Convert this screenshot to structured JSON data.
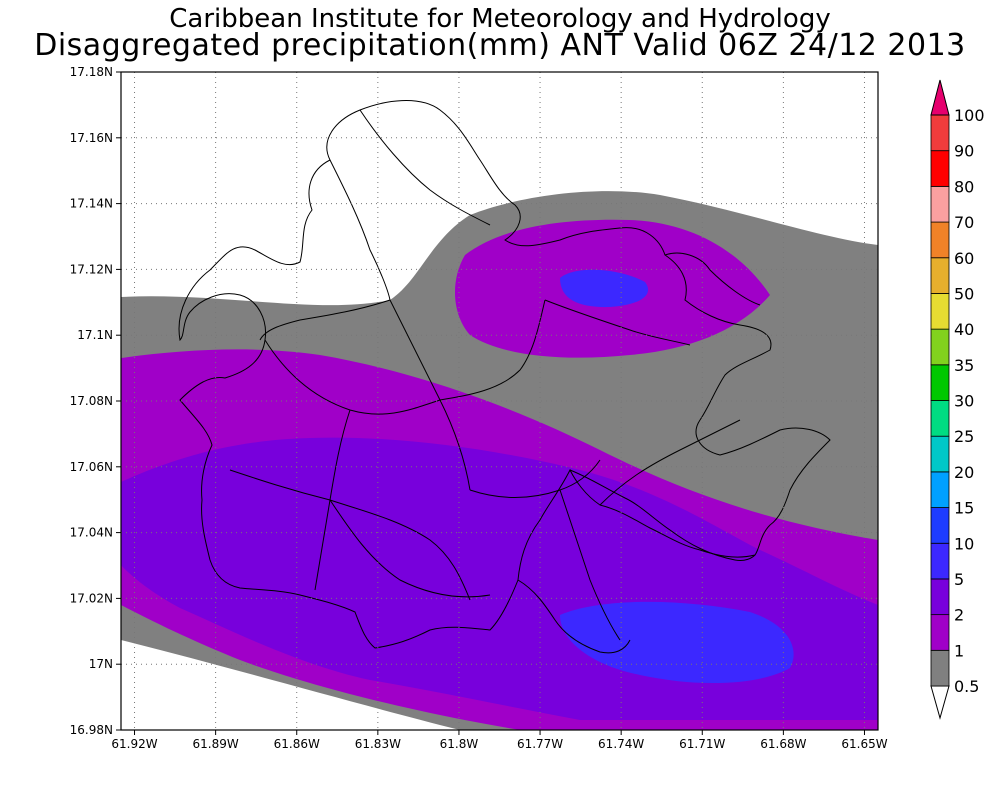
{
  "title": "Caribbean Institute for Meteorology and Hydrology",
  "subtitle": "Disaggregated precipitation(mm) ANT Valid 06Z 24/12 2013",
  "axes": {
    "x_ticks": [
      "61.92W",
      "61.89W",
      "61.86W",
      "61.83W",
      "61.8W",
      "61.77W",
      "61.74W",
      "61.71W",
      "61.68W",
      "61.65W"
    ],
    "y_ticks": [
      "17.18N",
      "17.16N",
      "17.14N",
      "17.12N",
      "17.1N",
      "17.08N",
      "17.06N",
      "17.04N",
      "17.02N",
      "17N",
      "16.98N"
    ],
    "lon_range": [
      -61.925,
      -61.645
    ],
    "lat_range": [
      16.98,
      17.18
    ],
    "grid": true
  },
  "legend": {
    "placement": "right",
    "levels": [
      {
        "label": "0.5",
        "color": "#ffffff"
      },
      {
        "label": "1",
        "color": "#808080"
      },
      {
        "label": "2",
        "color": "#a000c8"
      },
      {
        "label": "5",
        "color": "#7800dc"
      },
      {
        "label": "10",
        "color": "#3c28ff"
      },
      {
        "label": "15",
        "color": "#1e3cff"
      },
      {
        "label": "20",
        "color": "#00a0ff"
      },
      {
        "label": "25",
        "color": "#00c8c8"
      },
      {
        "label": "30",
        "color": "#00dc82"
      },
      {
        "label": "35",
        "color": "#00c800"
      },
      {
        "label": "40",
        "color": "#82d21e"
      },
      {
        "label": "50",
        "color": "#e6dc32"
      },
      {
        "label": "60",
        "color": "#e6af2d"
      },
      {
        "label": "70",
        "color": "#f08228"
      },
      {
        "label": "80",
        "color": "#faa0a0"
      },
      {
        "label": "90",
        "color": "#ff0000"
      },
      {
        "label": "100",
        "color": "#f03c3c"
      }
    ],
    "over_color": "#e6006e",
    "under_color": "#ffffff"
  },
  "map": {
    "region": "ANT",
    "fill_colors": {
      "gray": "#808080",
      "purple": "#a000c8",
      "violet": "#7800dc",
      "blue": "#3c28ff"
    }
  }
}
